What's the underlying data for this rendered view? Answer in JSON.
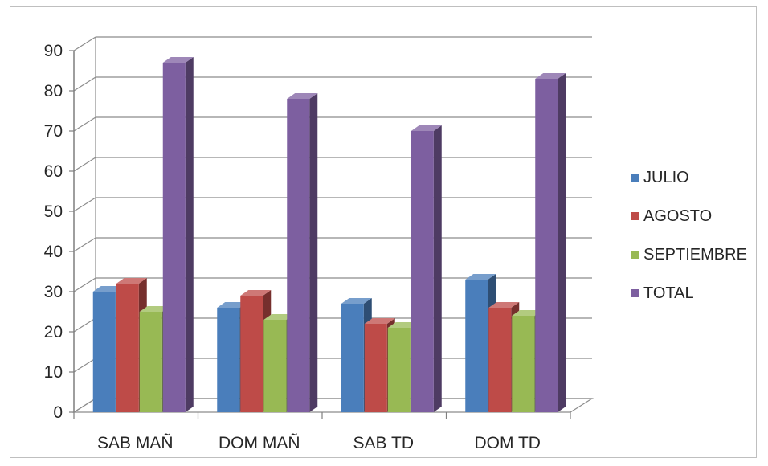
{
  "chart_data": {
    "type": "bar",
    "title": "",
    "xlabel": "",
    "ylabel": "",
    "categories": [
      "SAB MAÑ",
      "DOM MAÑ",
      "SAB TD",
      "DOM TD"
    ],
    "series": [
      {
        "name": "JULIO",
        "values": [
          30,
          26,
          27,
          33
        ],
        "color": "#4a7ebb"
      },
      {
        "name": "AGOSTO",
        "values": [
          32,
          29,
          22,
          26
        ],
        "color": "#be4b48"
      },
      {
        "name": "SEPTIEMBRE",
        "values": [
          25,
          23,
          21,
          24
        ],
        "color": "#98b954"
      },
      {
        "name": "TOTAL",
        "values": [
          87,
          78,
          70,
          83
        ],
        "color": "#7d5fa0"
      }
    ],
    "ylim": [
      0,
      90
    ],
    "yticks": [
      "0",
      "10",
      "20",
      "30",
      "40",
      "50",
      "60",
      "70",
      "80",
      "90"
    ],
    "grid": true,
    "legend_position": "right",
    "style": "3d-column"
  }
}
